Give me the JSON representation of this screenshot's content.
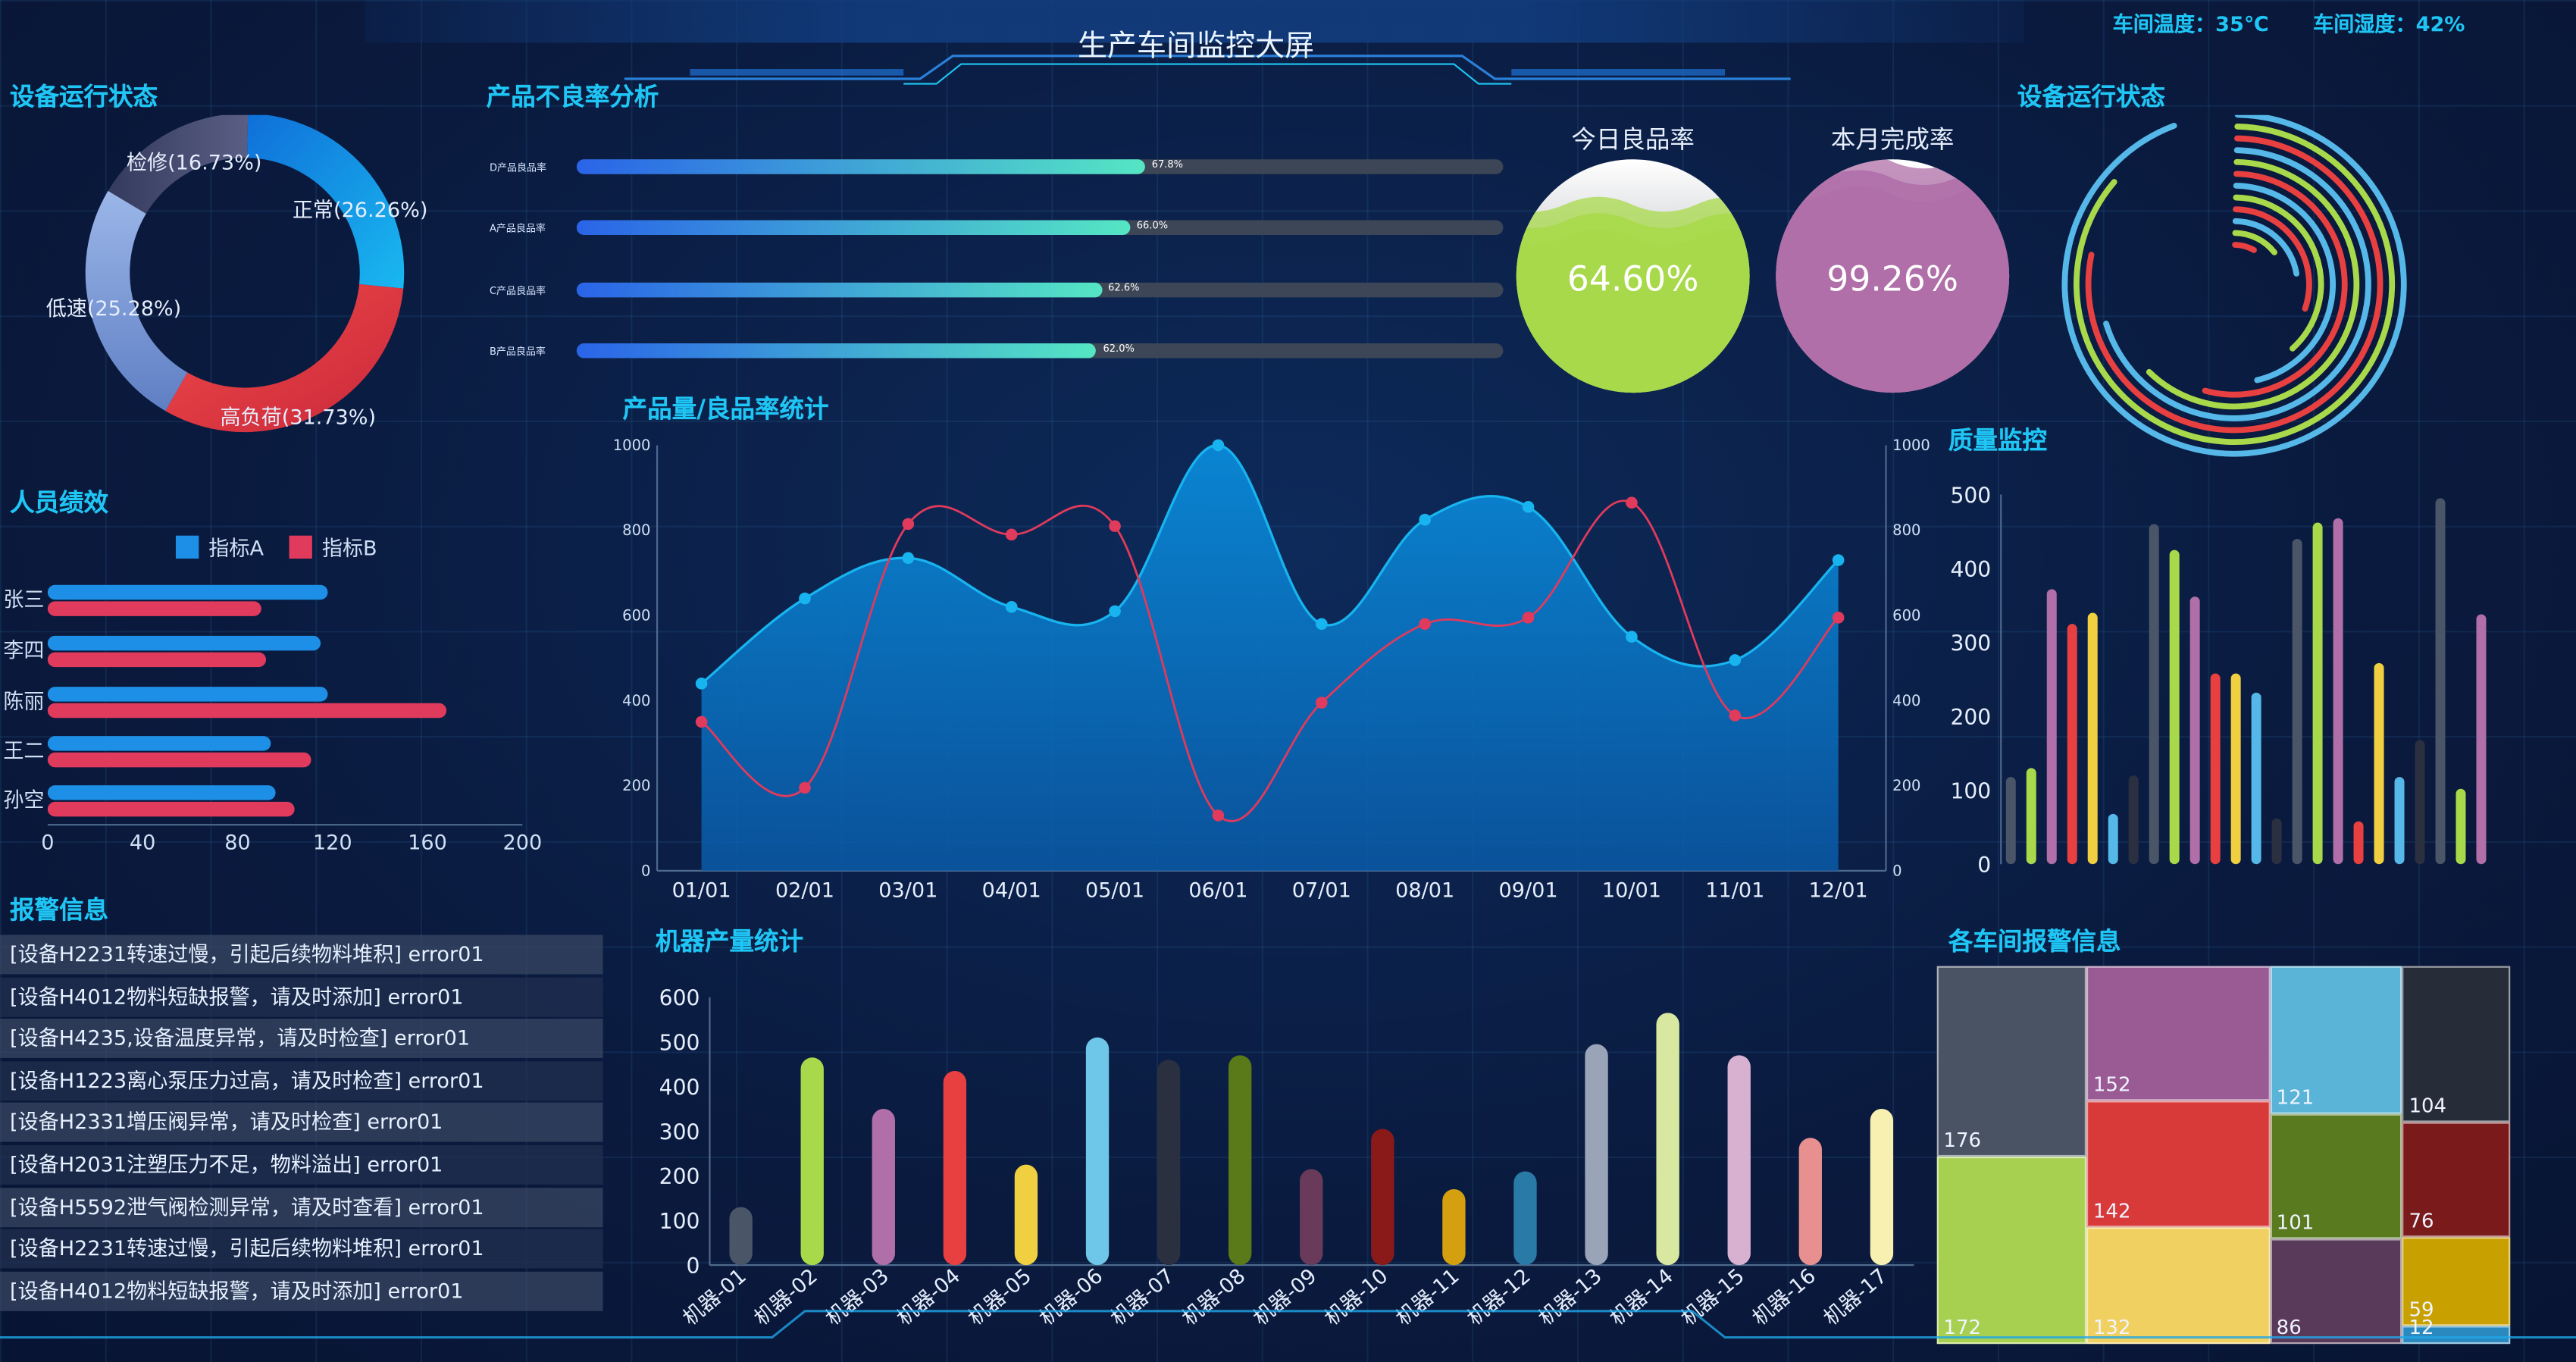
{
  "header": {
    "title": "生产车间监控大屏",
    "temperature": "车间温度：35℃",
    "humidity": "车间湿度：42%"
  },
  "sections": {
    "device_status_left": "设备运行状态",
    "defect_analysis": "产品不良率分析",
    "device_status_right": "设备运行状态",
    "performance": "人员绩效",
    "output_stats": "产品量/良品率统计",
    "quality": "质量监控",
    "alarms": "报警信息",
    "machine_output": "机器产量统计",
    "workshop_alarms": "各车间报警信息"
  },
  "colors": {
    "accent": "#1fc6f5",
    "background": "#0b1a40",
    "series_a": "#1e8fe6",
    "series_b": "#e03a5c"
  },
  "chart_data": [
    {
      "id": "device-status-donut",
      "type": "pie",
      "labels": [
        "正常(26.26%)",
        "高负荷(31.73%)",
        "低速(25.28%)",
        "检修(16.73%)"
      ],
      "values": [
        26.26,
        31.73,
        25.28,
        16.73
      ],
      "colors": [
        "#1aa7e8",
        "#ee3a45",
        "#7b9bd6",
        "#4a4e72"
      ]
    },
    {
      "id": "defect-rate-bars",
      "type": "bar",
      "categories": [
        "D产品良品率",
        "A产品良品率",
        "C产品良品率",
        "B产品良品率"
      ],
      "values": [
        67.8,
        66.0,
        62.6,
        62.0
      ],
      "value_labels": [
        "67.8%",
        "66.0%",
        "62.6%",
        "62.0%"
      ],
      "xlim": [
        0,
        100
      ]
    },
    {
      "id": "gauges",
      "type": "pie",
      "items": [
        {
          "title": "今日良品率",
          "value": 64.6,
          "label": "64.60%",
          "color": "#a8d94a"
        },
        {
          "title": "本月完成率",
          "value": 99.26,
          "label": "99.26%",
          "color": "#b06fa8"
        }
      ]
    },
    {
      "id": "device-status-rings",
      "type": "pie",
      "values": [
        0.08,
        0.14,
        0.22,
        0.3,
        0.38,
        0.46,
        0.54,
        0.62,
        0.7,
        0.78,
        0.86,
        0.94
      ],
      "colors": [
        "#e84040",
        "#a8d94a",
        "#55b8e8",
        "#e84040",
        "#a8d94a",
        "#55b8e8",
        "#e84040",
        "#a8d94a",
        "#55b8e8",
        "#e84040",
        "#a8d94a",
        "#55b8e8"
      ]
    },
    {
      "id": "staff-performance",
      "type": "bar",
      "categories": [
        "张三",
        "李四",
        "陈丽",
        "王二",
        "孙空"
      ],
      "series": [
        {
          "name": "指标A",
          "values": [
            118,
            115,
            118,
            94,
            96
          ]
        },
        {
          "name": "指标B",
          "values": [
            90,
            92,
            168,
            111,
            104
          ]
        }
      ],
      "xlim": [
        0,
        200
      ],
      "xticks": [
        "0",
        "40",
        "80",
        "120",
        "160",
        "200"
      ]
    },
    {
      "id": "monthly-output",
      "type": "area",
      "categories": [
        "01/01",
        "02/01",
        "03/01",
        "04/01",
        "05/01",
        "06/01",
        "07/01",
        "08/01",
        "09/01",
        "10/01",
        "11/01",
        "12/01"
      ],
      "series": [
        {
          "name": "产品量",
          "type": "area",
          "values": [
            440,
            640,
            735,
            620,
            610,
            1000,
            580,
            825,
            855,
            550,
            495,
            730
          ]
        },
        {
          "name": "良品率",
          "type": "line",
          "values": [
            350,
            195,
            815,
            790,
            810,
            130,
            395,
            580,
            595,
            865,
            365,
            595
          ]
        }
      ],
      "ylim": [
        0,
        1000
      ],
      "yticks": [
        "0",
        "200",
        "400",
        "600",
        "800",
        "1000"
      ]
    },
    {
      "id": "quality-monitor",
      "type": "bar",
      "values": [
        118,
        130,
        372,
        325,
        340,
        68,
        120,
        460,
        425,
        362,
        258,
        258,
        232,
        62,
        440,
        462,
        468,
        58,
        272,
        118,
        168,
        495,
        102,
        338
      ],
      "colors": [
        "#4a5568",
        "#a8d94a",
        "#b06fa8",
        "#e84040",
        "#f0d040",
        "#55b8e8",
        "#2a3040",
        "#4a5568",
        "#a8d94a",
        "#b06fa8",
        "#e84040",
        "#f0d040",
        "#55b8e8",
        "#2a3040",
        "#4a5568",
        "#a8d94a",
        "#b06fa8",
        "#e84040",
        "#f0d040",
        "#55b8e8",
        "#2a3040",
        "#4a5568",
        "#a8d94a",
        "#b06fa8"
      ],
      "ylim": [
        0,
        500
      ],
      "yticks": [
        "0",
        "100",
        "200",
        "300",
        "400",
        "500"
      ]
    },
    {
      "id": "machine-output",
      "type": "bar",
      "categories": [
        "机器-01",
        "机器-02",
        "机器-03",
        "机器-04",
        "机器-05",
        "机器-06",
        "机器-07",
        "机器-08",
        "机器-09",
        "机器-10",
        "机器-11",
        "机器-12",
        "机器-13",
        "机器-14",
        "机器-15",
        "机器-16",
        "机器-17"
      ],
      "values": [
        130,
        465,
        350,
        435,
        225,
        510,
        460,
        470,
        215,
        305,
        170,
        210,
        495,
        565,
        470,
        285,
        350
      ],
      "colors": [
        "#4a5568",
        "#a8d94a",
        "#b06fa8",
        "#e84040",
        "#f0d040",
        "#6ec6e8",
        "#2a3040",
        "#5a7a1a",
        "#6a3a5a",
        "#8a1a1a",
        "#d4a010",
        "#2a7aa8",
        "#9aa4b8",
        "#d8e8a0",
        "#d8b0d0",
        "#e89090",
        "#f8f0b0"
      ],
      "ylim": [
        0,
        600
      ],
      "yticks": [
        "0",
        "100",
        "200",
        "300",
        "400",
        "500",
        "600"
      ]
    },
    {
      "id": "workshop-alarms-treemap",
      "type": "heatmap",
      "values": [
        176,
        172,
        152,
        142,
        132,
        121,
        101,
        86,
        104,
        76,
        59,
        12
      ],
      "value_labels": [
        "176",
        "172",
        "152",
        "142",
        "132",
        "121",
        "101",
        "86",
        "104",
        "76",
        "59",
        "12"
      ],
      "colors": [
        "#4a5363",
        "#a8d050",
        "#9a5a94",
        "#d83a3a",
        "#f0d060",
        "#5ab4d8",
        "#5a7a20",
        "#5a3a5a",
        "#262c38",
        "#7a1a1a",
        "#c8a000",
        "#2a8ac0"
      ]
    }
  ],
  "alarms": [
    "[设备H2231转速过慢，引起后续物料堆积] error01",
    "[设备H4012物料短缺报警，请及时添加] error01",
    "[设备H4235,设备温度异常，请及时检查] error01",
    "[设备H1223离心泵压力过高，请及时检查] error01",
    "[设备H2331增压阀异常，请及时检查] error01",
    "[设备H2031注塑压力不足，物料溢出] error01",
    "[设备H5592泄气阀检测异常，请及时查看] error01",
    "[设备H2231转速过慢，引起后续物料堆积] error01",
    "[设备H4012物料短缺报警，请及时添加] error01"
  ]
}
